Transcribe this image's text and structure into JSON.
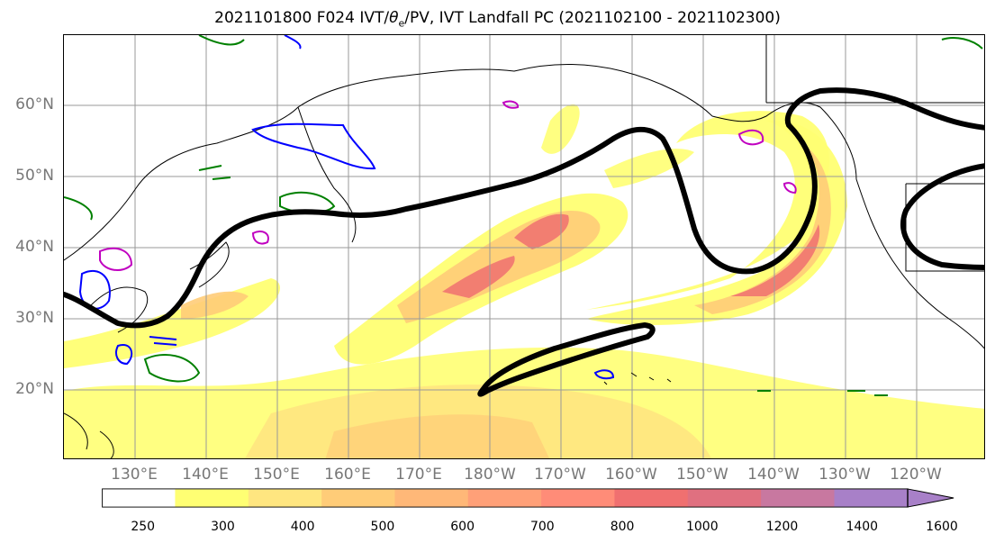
{
  "title_pre": "2021101800 F024 IVT/",
  "title_theta": "θ",
  "title_sub": "e",
  "title_post": "/PV, IVT Landfall PC (2021102100 - 2021102300)",
  "lat_labels": [
    "60°N",
    "50°N",
    "40°N",
    "30°N",
    "20°N"
  ],
  "lon_labels": [
    "130°E",
    "140°E",
    "150°E",
    "160°E",
    "170°E",
    "180°W",
    "170°W",
    "160°W",
    "150°W",
    "140°W",
    "130°W",
    "120°W"
  ],
  "colorbar": {
    "ticks": [
      "250",
      "300",
      "400",
      "500",
      "600",
      "700",
      "800",
      "1000",
      "1200",
      "1400",
      "1600"
    ],
    "colors": [
      "#ffffff",
      "#ffff73",
      "#ffe680",
      "#ffcc78",
      "#ffb878",
      "#ffa078",
      "#ff8c78",
      "#f07070",
      "#e07080",
      "#c878a0",
      "#a880c8"
    ]
  },
  "legend_colors": {
    "contour_black": "#000000",
    "pv_green": "#008000",
    "pv_blue": "#0000ff",
    "pv_magenta": "#c000c0",
    "grid": "#999999"
  }
}
